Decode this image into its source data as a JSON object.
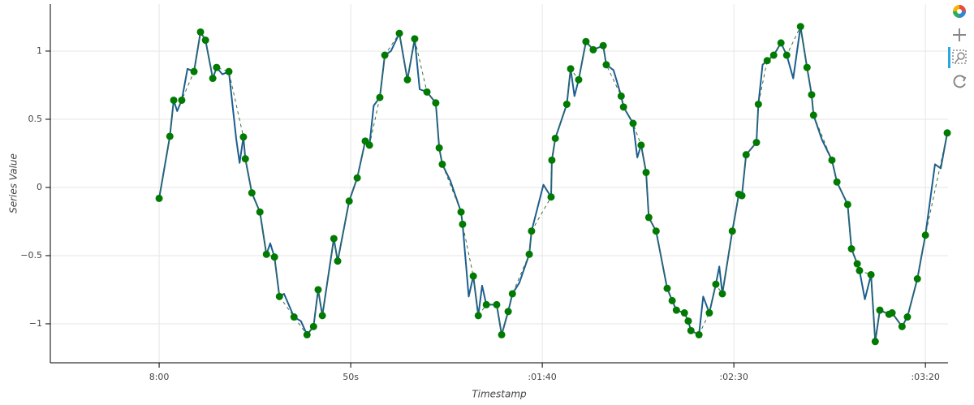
{
  "chart_data": {
    "type": "line",
    "x_label": "Timestamp",
    "y_label": "Series Value",
    "xlim": [
      -28.4,
      205.9
    ],
    "ylim": [
      -1.286,
      1.345
    ],
    "xticks": [
      {
        "value": 0,
        "label": "8:00"
      },
      {
        "value": 50,
        "label": "50s"
      },
      {
        "value": 100,
        "label": ":01:40"
      },
      {
        "value": 150,
        "label": ":02:30"
      },
      {
        "value": 200,
        "label": ":03:20"
      }
    ],
    "yticks": [
      {
        "value": 1,
        "label": "1"
      },
      {
        "value": 0.5,
        "label": "0.5"
      },
      {
        "value": 0,
        "label": "0"
      },
      {
        "value": -0.5,
        "label": "−0.5"
      },
      {
        "value": -1,
        "label": "−1"
      }
    ],
    "grid": true,
    "series": [
      {
        "color": "#1c5e8f",
        "line_width": 2,
        "x": [
          0,
          2.8,
          3.8,
          4.7,
          5.9,
          7.4,
          9.1,
          10.8,
          12.1,
          14.0,
          15.0,
          16.5,
          18.2,
          20.1,
          21.0,
          22.0,
          22.5,
          24.2,
          26.3,
          28.0,
          29.0,
          30.1,
          31.4,
          32.6,
          35.2,
          37.0,
          38.6,
          40.3,
          41.5,
          42.6,
          45.6,
          46.6,
          49.6,
          51.7,
          53.8,
          54.9,
          56.0,
          57.6,
          58.9,
          60.5,
          62.7,
          64.8,
          66.7,
          68.0,
          69.9,
          72.2,
          73.1,
          73.9,
          76.0,
          78.8,
          79.2,
          80.8,
          82.0,
          83.3,
          84.3,
          85.4,
          88.1,
          89.4,
          91.1,
          92.2,
          94.0,
          96.6,
          97.2,
          100.3,
          102.3,
          102.5,
          103.4,
          106.4,
          107.4,
          108.4,
          109.5,
          111.4,
          113.3,
          115.9,
          116.7,
          118.6,
          120.6,
          121.2,
          123.7,
          124.8,
          125.8,
          127.1,
          127.8,
          129.7,
          132.6,
          133.9,
          135.0,
          137.1,
          138.1,
          138.8,
          140.9,
          142.0,
          143.6,
          145.3,
          146.2,
          147.0,
          149.6,
          151.3,
          152.1,
          153.2,
          155.9,
          156.4,
          157.5,
          158.7,
          160.4,
          162.3,
          163.8,
          165.5,
          167.4,
          169.1,
          170.3,
          170.8,
          173.0,
          175.6,
          176.9,
          179.7,
          180.7,
          182.2,
          182.8,
          184.2,
          185.8,
          186.9,
          188.1,
          190.5,
          191.3,
          193.9,
          195.3,
          197.9,
          199.0,
          200.0,
          202.5,
          204.0,
          205.7
        ],
        "values": [
          -0.08,
          0.375,
          0.64,
          0.56,
          0.64,
          0.87,
          0.85,
          1.14,
          1.08,
          0.8,
          0.88,
          0.83,
          0.85,
          0.36,
          0.18,
          0.37,
          0.21,
          -0.04,
          -0.18,
          -0.49,
          -0.41,
          -0.51,
          -0.8,
          -0.78,
          -0.95,
          -0.98,
          -1.08,
          -1.02,
          -0.75,
          -0.94,
          -0.375,
          -0.54,
          -0.1,
          0.07,
          0.34,
          0.31,
          0.6,
          0.66,
          0.97,
          1.0,
          1.13,
          0.79,
          1.09,
          0.72,
          0.7,
          0.62,
          0.29,
          0.17,
          0.05,
          -0.18,
          -0.27,
          -0.8,
          -0.65,
          -0.94,
          -0.72,
          -0.86,
          -0.86,
          -1.08,
          -0.91,
          -0.78,
          -0.7,
          -0.49,
          -0.32,
          0.02,
          -0.07,
          0.2,
          0.36,
          0.61,
          0.87,
          0.67,
          0.79,
          1.07,
          1.01,
          1.04,
          0.9,
          0.86,
          0.67,
          0.59,
          0.47,
          0.22,
          0.31,
          0.11,
          -0.22,
          -0.32,
          -0.74,
          -0.83,
          -0.9,
          -0.92,
          -0.98,
          -1.05,
          -1.08,
          -0.8,
          -0.92,
          -0.71,
          -0.58,
          -0.78,
          -0.32,
          -0.05,
          -0.06,
          0.24,
          0.33,
          0.61,
          0.9,
          0.93,
          0.97,
          1.06,
          0.97,
          0.8,
          1.18,
          0.88,
          0.68,
          0.53,
          0.35,
          0.2,
          0.04,
          -0.125,
          -0.45,
          -0.56,
          -0.61,
          -0.82,
          -0.64,
          -1.13,
          -0.9,
          -0.93,
          -0.92,
          -1.02,
          -0.95,
          -0.67,
          -0.5,
          -0.35,
          0.17,
          0.14,
          0.4
        ]
      },
      {
        "color": "#007a00",
        "marker": "circle",
        "line_dash": "dashed",
        "line_color": "#3d6e3d",
        "x": [
          0,
          2.8,
          3.8,
          5.9,
          9.1,
          10.8,
          12.1,
          14.0,
          15.0,
          18.2,
          22.0,
          22.5,
          24.2,
          26.3,
          28.0,
          30.1,
          31.4,
          35.2,
          38.6,
          40.3,
          41.5,
          42.6,
          45.6,
          46.6,
          49.6,
          51.7,
          53.8,
          54.9,
          57.6,
          58.9,
          62.7,
          64.8,
          66.7,
          69.9,
          72.2,
          73.1,
          73.9,
          78.8,
          79.2,
          82.0,
          83.3,
          85.4,
          88.1,
          89.4,
          91.1,
          92.2,
          96.6,
          97.2,
          102.3,
          102.5,
          103.4,
          106.4,
          107.4,
          109.5,
          111.4,
          113.3,
          115.9,
          116.7,
          120.6,
          121.2,
          123.7,
          125.8,
          127.1,
          127.8,
          129.7,
          132.6,
          133.9,
          135.0,
          137.1,
          138.1,
          138.8,
          140.9,
          143.6,
          145.3,
          147.0,
          149.6,
          151.3,
          152.1,
          153.2,
          155.9,
          156.4,
          158.7,
          160.4,
          162.3,
          163.8,
          167.4,
          169.1,
          170.3,
          170.8,
          175.6,
          176.9,
          179.7,
          180.7,
          182.2,
          182.8,
          185.8,
          186.9,
          188.1,
          190.5,
          191.3,
          193.9,
          195.3,
          197.9,
          200.0,
          205.7
        ],
        "values": [
          -0.08,
          0.375,
          0.64,
          0.64,
          0.85,
          1.14,
          1.08,
          0.8,
          0.88,
          0.85,
          0.37,
          0.21,
          -0.04,
          -0.18,
          -0.49,
          -0.51,
          -0.8,
          -0.95,
          -1.08,
          -1.02,
          -0.75,
          -0.94,
          -0.375,
          -0.54,
          -0.1,
          0.07,
          0.34,
          0.31,
          0.66,
          0.97,
          1.13,
          0.79,
          1.09,
          0.7,
          0.62,
          0.29,
          0.17,
          -0.18,
          -0.27,
          -0.65,
          -0.94,
          -0.86,
          -0.86,
          -1.08,
          -0.91,
          -0.78,
          -0.49,
          -0.32,
          -0.07,
          0.2,
          0.36,
          0.61,
          0.87,
          0.79,
          1.07,
          1.01,
          1.04,
          0.9,
          0.67,
          0.59,
          0.47,
          0.31,
          0.11,
          -0.22,
          -0.32,
          -0.74,
          -0.83,
          -0.9,
          -0.92,
          -0.98,
          -1.05,
          -1.08,
          -0.92,
          -0.71,
          -0.78,
          -0.32,
          -0.05,
          -0.06,
          0.24,
          0.33,
          0.61,
          0.93,
          0.97,
          1.06,
          0.97,
          1.18,
          0.88,
          0.68,
          0.53,
          0.2,
          0.04,
          -0.125,
          -0.45,
          -0.56,
          -0.61,
          -0.64,
          -1.13,
          -0.9,
          -0.93,
          -0.92,
          -1.02,
          -0.95,
          -0.67,
          -0.35,
          0.4
        ]
      }
    ]
  }
}
